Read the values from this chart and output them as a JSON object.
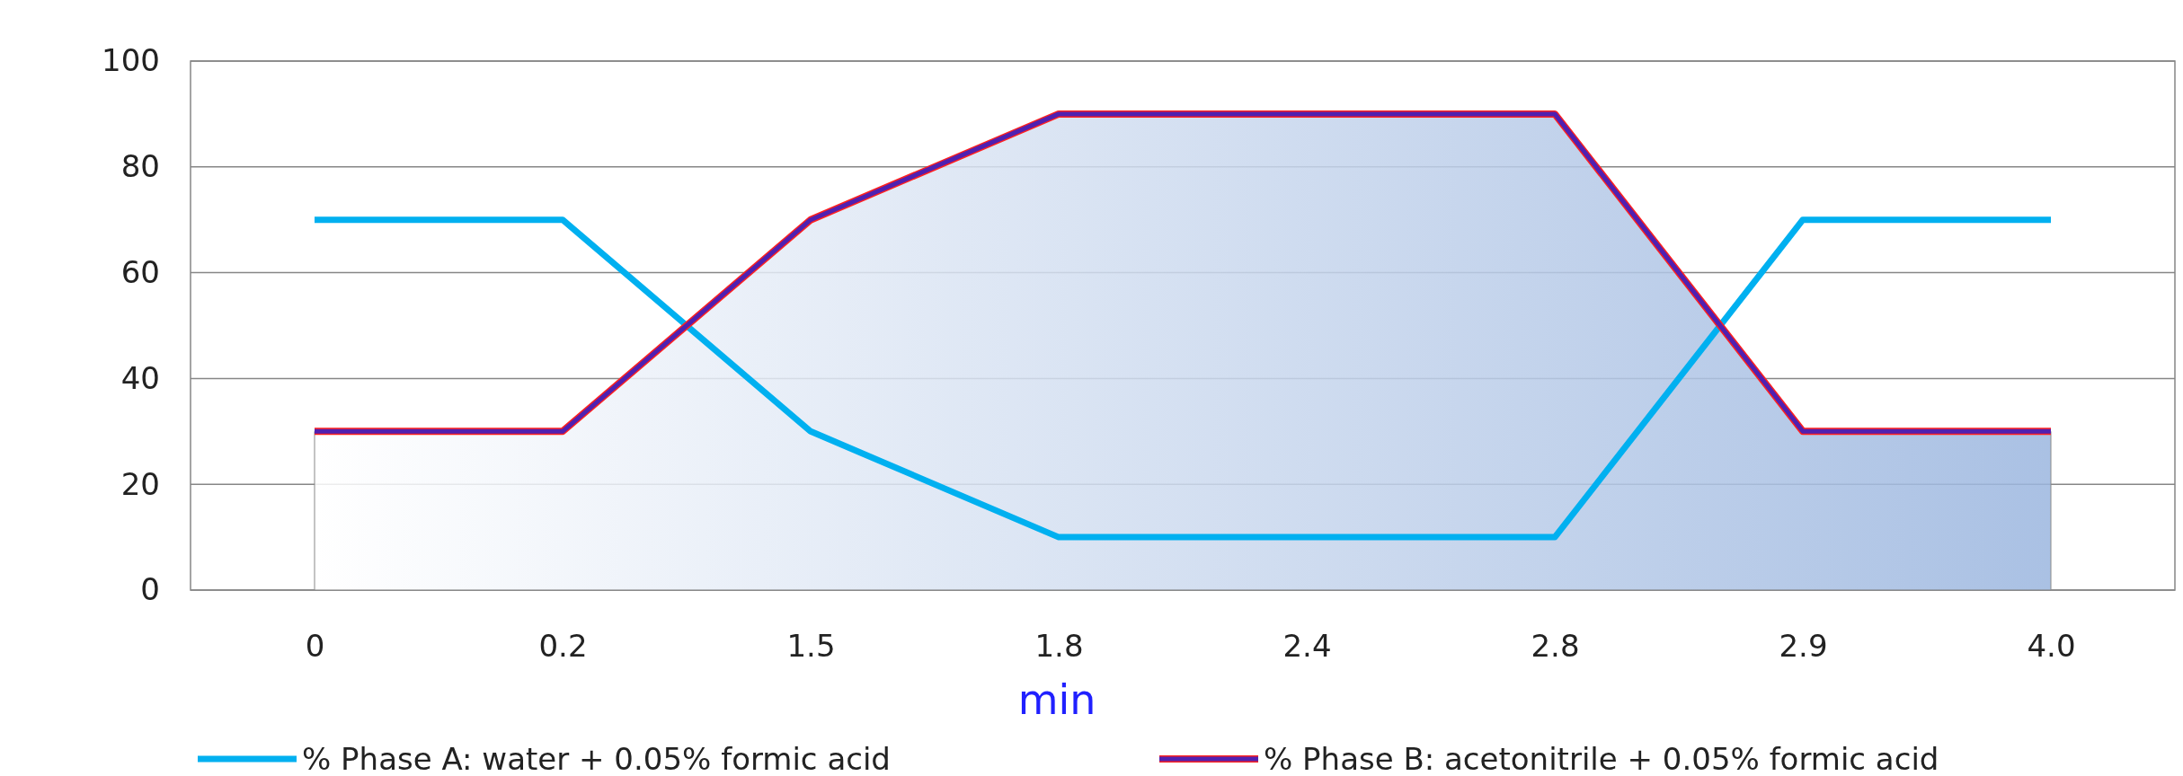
{
  "chart_data": {
    "type": "line",
    "xlabel": "min",
    "categories": [
      "0",
      "0.2",
      "1.5",
      "1.8",
      "2.4",
      "2.8",
      "2.9",
      "4.0"
    ],
    "series": [
      {
        "name": "% Phase A: water + 0.05% formic acid",
        "color": "#00b0f0",
        "values": [
          70,
          70,
          30,
          10,
          10,
          10,
          70,
          70
        ]
      },
      {
        "name": "% Phase B: acetonitrile + 0.05% formic acid",
        "type": "area",
        "color": "#5020b0",
        "values": [
          30,
          30,
          70,
          90,
          90,
          90,
          30,
          30
        ]
      }
    ],
    "ylim": [
      0,
      100
    ],
    "yticks": [
      0,
      20,
      40,
      60,
      80,
      100
    ],
    "grid": "y",
    "legend": "bottom",
    "marker": "none",
    "line_style": "solid"
  }
}
